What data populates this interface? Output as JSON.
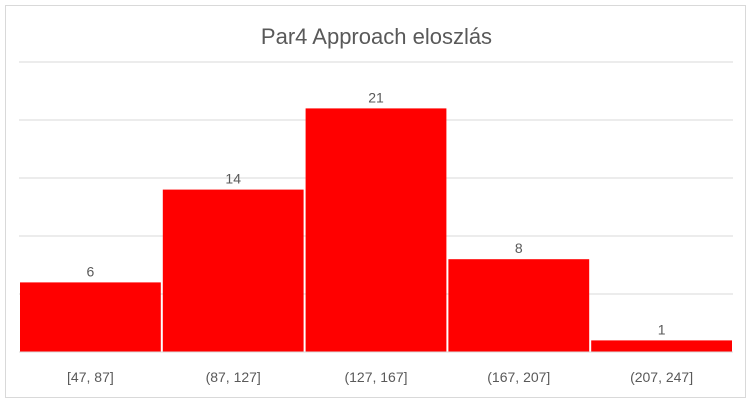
{
  "chart_data": {
    "type": "bar",
    "title": "Par4 Approach eloszlás",
    "categories": [
      "[47, 87]",
      "(87, 127]",
      "(127, 167]",
      "(167, 207]",
      "(207, 247]"
    ],
    "values": [
      6,
      14,
      21,
      8,
      1
    ],
    "xlabel": "",
    "ylabel": "",
    "ylim": [
      0,
      25
    ],
    "y_gridlines": [
      5,
      10,
      15,
      20,
      25
    ],
    "grid": true,
    "data_labels": true,
    "bar_color": "#ff0000",
    "gridline_color": "#d9d9d9",
    "text_color": "#595959"
  }
}
